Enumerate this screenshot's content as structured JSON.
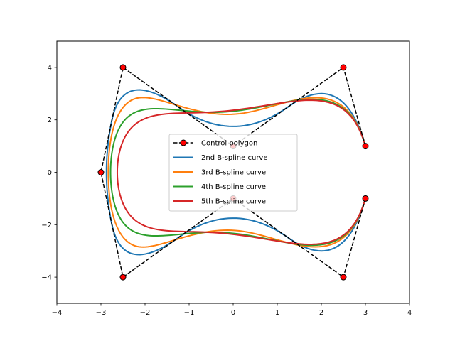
{
  "chart_data": {
    "type": "line",
    "title": "",
    "xlabel": "",
    "ylabel": "",
    "xlim": [
      -4,
      4
    ],
    "ylim": [
      -5,
      5
    ],
    "xticks": [
      -4,
      -3,
      -2,
      -1,
      0,
      1,
      2,
      3,
      4
    ],
    "yticks": [
      -4,
      -2,
      0,
      2,
      4
    ],
    "grid": false,
    "legend_position": "center",
    "control_polygon": {
      "name": "Control polygon",
      "color": "#000000",
      "marker_color": "#ff0000",
      "points": [
        [
          3,
          1
        ],
        [
          2.5,
          4
        ],
        [
          0,
          1
        ],
        [
          -2.5,
          4
        ],
        [
          -3,
          0
        ],
        [
          -2.5,
          -4
        ],
        [
          0,
          -1
        ],
        [
          2.5,
          -4
        ],
        [
          3,
          -1
        ]
      ]
    },
    "series": [
      {
        "name": "2nd B-spline curve",
        "color": "#1f77b4",
        "degree": 2
      },
      {
        "name": "3rd B-spline curve",
        "color": "#ff7f0e",
        "degree": 3
      },
      {
        "name": "4th B-spline curve",
        "color": "#2ca02c",
        "degree": 4
      },
      {
        "name": "5th B-spline curve",
        "color": "#d62728",
        "degree": 5
      }
    ]
  }
}
